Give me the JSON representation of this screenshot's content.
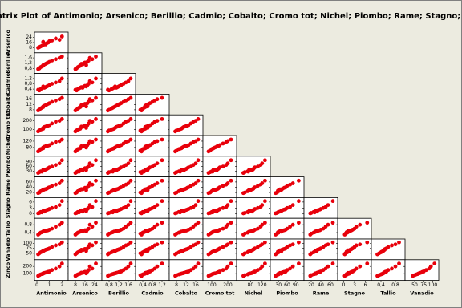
{
  "chart_data": {
    "type": "scatter-matrix",
    "title": "Matrix Plot of Antimonio; Arsenico; Berillio; Cadmio; Cobalto; Cromo tot; Nichel; Piombo; Rame; Stagno; Tallio; Vanadio; Zinco",
    "color": "#e8000b",
    "variables": [
      {
        "name": "Antimonio",
        "lim": [
          0,
          2.3
        ],
        "ticks": [
          0,
          1,
          2
        ],
        "values": [
          0.3,
          0.5,
          0.8,
          1.0,
          0.2,
          1.5,
          0.6,
          0.9,
          2.0,
          0.4,
          1.2,
          0.7,
          0.1,
          1.8,
          0.5
        ]
      },
      {
        "name": "Arsenico",
        "lim": [
          4,
          28
        ],
        "ticks": [
          8,
          16,
          24
        ],
        "values": [
          10,
          12,
          15,
          18,
          9,
          22,
          14,
          16,
          25,
          11,
          19,
          13,
          8,
          20,
          17
        ]
      },
      {
        "name": "Berillio",
        "lim": [
          0.6,
          1.8
        ],
        "ticks": [
          {
            "value": 0.8,
            "label": "0,8"
          },
          {
            "value": 1.2,
            "label": "1,2"
          },
          {
            "value": 1.6,
            "label": "1,6"
          }
        ],
        "values": [
          0.9,
          1.0,
          1.2,
          1.3,
          0.8,
          1.5,
          1.1,
          1.25,
          1.7,
          0.95,
          1.4,
          1.15,
          0.75,
          1.6,
          1.05
        ]
      },
      {
        "name": "Cadmio",
        "lim": [
          0.2,
          1.4
        ],
        "ticks": [
          {
            "value": 0.4,
            "label": "0,4"
          },
          {
            "value": 0.8,
            "label": "0,8"
          },
          {
            "value": 1.2,
            "label": "1,2"
          }
        ],
        "values": [
          0.4,
          0.5,
          0.6,
          0.7,
          0.3,
          0.9,
          0.5,
          0.65,
          1.2,
          0.45,
          0.8,
          0.55,
          0.35,
          1.0,
          0.6
        ]
      },
      {
        "name": "Cobalto",
        "lim": [
          6,
          18
        ],
        "ticks": [
          8,
          12,
          16
        ],
        "values": [
          9,
          10,
          12,
          13,
          8,
          15,
          11,
          12.5,
          17,
          9.5,
          14,
          11.5,
          7.5,
          16,
          10.5
        ]
      },
      {
        "name": "Cromo tot",
        "lim": [
          60,
          240
        ],
        "ticks": [
          100,
          200
        ],
        "values": [
          100,
          110,
          140,
          150,
          90,
          190,
          130,
          145,
          220,
          105,
          170,
          135,
          80,
          200,
          120
        ]
      },
      {
        "name": "Nichel",
        "lim": [
          40,
          140
        ],
        "ticks": [
          80,
          120
        ],
        "values": [
          70,
          75,
          90,
          95,
          60,
          115,
          85,
          92,
          130,
          72,
          105,
          88,
          55,
          120,
          80
        ]
      },
      {
        "name": "Piombo",
        "lim": [
          10,
          110
        ],
        "ticks": [
          30,
          60,
          90
        ],
        "values": [
          30,
          40,
          45,
          55,
          25,
          70,
          35,
          50,
          100,
          28,
          60,
          42,
          20,
          80,
          38
        ]
      },
      {
        "name": "Rame",
        "lim": [
          10,
          70
        ],
        "ticks": [
          20,
          40,
          60
        ],
        "values": [
          25,
          30,
          35,
          40,
          20,
          50,
          32,
          38,
          65,
          27,
          45,
          33,
          18,
          55,
          29
        ]
      },
      {
        "name": "Stagno",
        "lim": [
          -1,
          7
        ],
        "ticks": [
          0,
          3,
          6
        ],
        "values": [
          1,
          1.5,
          2,
          2.5,
          0.5,
          3.5,
          1.2,
          2.2,
          6.5,
          0.8,
          3,
          1.8,
          0.3,
          4.5,
          1.4
        ]
      },
      {
        "name": "Tallio",
        "lim": [
          0.2,
          1.0
        ],
        "ticks": [
          {
            "value": 0.4,
            "label": "0,4"
          },
          {
            "value": 0.8,
            "label": "0,8"
          }
        ],
        "values": [
          0.4,
          0.45,
          0.5,
          0.55,
          0.35,
          0.7,
          0.48,
          0.52,
          0.9,
          0.42,
          0.6,
          0.5,
          0.3,
          0.8,
          0.46
        ]
      },
      {
        "name": "Vanadio",
        "lim": [
          30,
          110
        ],
        "ticks": [
          50,
          75,
          100
        ],
        "values": [
          55,
          60,
          70,
          75,
          50,
          90,
          65,
          72,
          105,
          58,
          82,
          68,
          45,
          95,
          62
        ]
      },
      {
        "name": "Zinco",
        "lim": [
          40,
          260
        ],
        "ticks": [
          100,
          200
        ],
        "values": [
          90,
          100,
          120,
          130,
          80,
          170,
          110,
          125,
          240,
          95,
          150,
          115,
          70,
          200,
          105
        ]
      }
    ]
  }
}
